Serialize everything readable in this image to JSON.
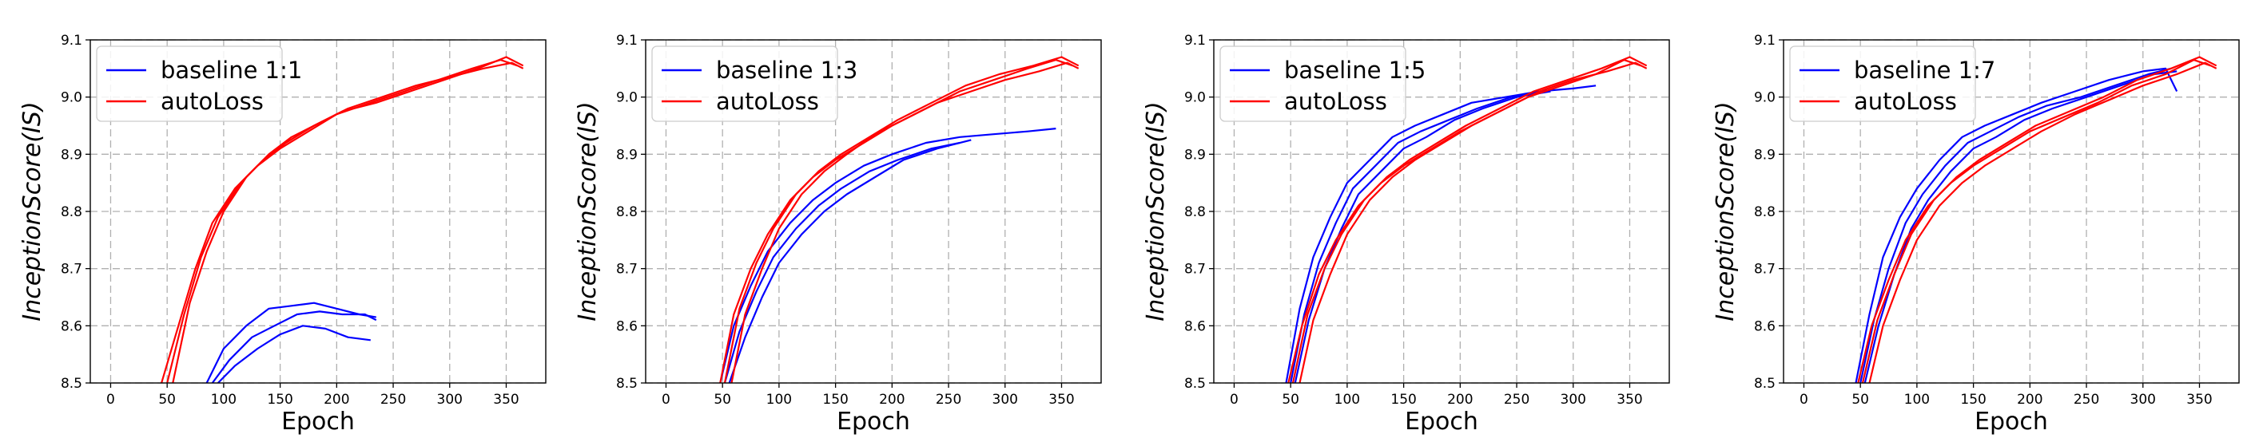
{
  "chart_data": [
    {
      "type": "line",
      "xlabel": "Epoch",
      "ylabel": "InceptionScore(IS)",
      "xlim": [
        -18,
        385
      ],
      "ylim": [
        8.5,
        9.1
      ],
      "xticks": [
        "0",
        "50",
        "100",
        "150",
        "200",
        "250",
        "300",
        "350"
      ],
      "yticks": [
        "8.5",
        "8.6",
        "8.7",
        "8.8",
        "8.9",
        "9.0",
        "9.1"
      ],
      "grid": true,
      "legend": "top-left",
      "series": [
        {
          "name": "baseline 1:1",
          "color": "#0000ff",
          "x": [
            85,
            100,
            120,
            140,
            160,
            180,
            200,
            220,
            235
          ],
          "y": [
            8.5,
            8.56,
            8.6,
            8.63,
            8.635,
            8.64,
            8.63,
            8.62,
            8.615
          ]
        },
        {
          "name": "",
          "color": "#0000ff",
          "x": [
            90,
            105,
            125,
            145,
            165,
            185,
            205,
            225,
            235
          ],
          "y": [
            8.5,
            8.54,
            8.58,
            8.6,
            8.62,
            8.625,
            8.62,
            8.62,
            8.61
          ]
        },
        {
          "name": "",
          "color": "#0000ff",
          "x": [
            95,
            110,
            130,
            150,
            170,
            190,
            210,
            230
          ],
          "y": [
            8.5,
            8.53,
            8.56,
            8.585,
            8.6,
            8.595,
            8.58,
            8.575
          ]
        },
        {
          "name": "autoLoss",
          "color": "#ff0000",
          "x": [
            45,
            60,
            75,
            90,
            110,
            130,
            150,
            175,
            200,
            230,
            260,
            290,
            320,
            345,
            360
          ],
          "y": [
            8.5,
            8.6,
            8.7,
            8.78,
            8.84,
            8.88,
            8.91,
            8.94,
            8.97,
            8.99,
            9.01,
            9.03,
            9.05,
            9.065,
            9.055
          ]
        },
        {
          "name": "",
          "color": "#ff0000",
          "x": [
            50,
            65,
            80,
            95,
            115,
            135,
            155,
            180,
            205,
            235,
            265,
            295,
            325,
            350,
            365
          ],
          "y": [
            8.5,
            8.62,
            8.72,
            8.79,
            8.85,
            8.89,
            8.92,
            8.95,
            8.975,
            8.99,
            9.01,
            9.03,
            9.05,
            9.07,
            9.055
          ]
        },
        {
          "name": "",
          "color": "#ff0000",
          "x": [
            55,
            70,
            85,
            100,
            120,
            140,
            160,
            185,
            210,
            240,
            270,
            300,
            330,
            355,
            365
          ],
          "y": [
            8.5,
            8.64,
            8.73,
            8.8,
            8.86,
            8.9,
            8.93,
            8.955,
            8.98,
            9.0,
            9.02,
            9.035,
            9.05,
            9.06,
            9.05
          ]
        }
      ]
    },
    {
      "type": "line",
      "xlabel": "Epoch",
      "ylabel": "InceptionScore(IS)",
      "xlim": [
        -18,
        385
      ],
      "ylim": [
        8.5,
        9.1
      ],
      "xticks": [
        "0",
        "50",
        "100",
        "150",
        "200",
        "250",
        "300",
        "350"
      ],
      "yticks": [
        "8.5",
        "8.6",
        "8.7",
        "8.8",
        "8.9",
        "9.0",
        "9.1"
      ],
      "grid": true,
      "legend": "top-left",
      "series": [
        {
          "name": "baseline 1:3",
          "color": "#0000ff",
          "x": [
            48,
            60,
            75,
            90,
            110,
            130,
            150,
            175,
            200,
            230,
            260,
            290,
            320,
            345
          ],
          "y": [
            8.5,
            8.6,
            8.67,
            8.73,
            8.78,
            8.82,
            8.85,
            8.88,
            8.9,
            8.92,
            8.93,
            8.935,
            8.94,
            8.945
          ]
        },
        {
          "name": "",
          "color": "#0000ff",
          "x": [
            52,
            65,
            80,
            95,
            115,
            135,
            155,
            180,
            205,
            235,
            260
          ],
          "y": [
            8.5,
            8.59,
            8.66,
            8.72,
            8.77,
            8.81,
            8.84,
            8.87,
            8.89,
            8.91,
            8.92
          ]
        },
        {
          "name": "",
          "color": "#0000ff",
          "x": [
            56,
            70,
            85,
            100,
            120,
            140,
            160,
            185,
            210,
            240,
            270
          ],
          "y": [
            8.5,
            8.58,
            8.65,
            8.71,
            8.76,
            8.8,
            8.83,
            8.86,
            8.89,
            8.91,
            8.925
          ]
        },
        {
          "name": "autoLoss",
          "color": "#ff0000",
          "x": [
            48,
            60,
            75,
            90,
            110,
            130,
            150,
            175,
            200,
            230,
            260,
            290,
            320,
            345,
            360
          ],
          "y": [
            8.5,
            8.62,
            8.7,
            8.76,
            8.82,
            8.86,
            8.89,
            8.92,
            8.95,
            8.98,
            9.01,
            9.03,
            9.05,
            9.065,
            9.055
          ]
        },
        {
          "name": "",
          "color": "#ff0000",
          "x": [
            52,
            65,
            80,
            95,
            115,
            135,
            155,
            180,
            205,
            235,
            265,
            295,
            325,
            350,
            365
          ],
          "y": [
            8.5,
            8.63,
            8.71,
            8.77,
            8.83,
            8.87,
            8.9,
            8.93,
            8.96,
            8.99,
            9.02,
            9.04,
            9.055,
            9.07,
            9.055
          ]
        },
        {
          "name": "",
          "color": "#ff0000",
          "x": [
            58,
            70,
            85,
            100,
            120,
            140,
            160,
            185,
            210,
            240,
            270,
            300,
            330,
            355,
            365
          ],
          "y": [
            8.5,
            8.62,
            8.7,
            8.77,
            8.83,
            8.87,
            8.9,
            8.935,
            8.96,
            8.99,
            9.01,
            9.03,
            9.045,
            9.06,
            9.05
          ]
        }
      ]
    },
    {
      "type": "line",
      "xlabel": "Epoch",
      "ylabel": "InceptionScore(IS)",
      "xlim": [
        -18,
        385
      ],
      "ylim": [
        8.5,
        9.1
      ],
      "xticks": [
        "0",
        "50",
        "100",
        "150",
        "200",
        "250",
        "300",
        "350"
      ],
      "yticks": [
        "8.5",
        "8.6",
        "8.7",
        "8.8",
        "8.9",
        "9.0",
        "9.1"
      ],
      "grid": true,
      "legend": "top-left",
      "series": [
        {
          "name": "baseline 1:5",
          "color": "#0000ff",
          "x": [
            46,
            58,
            70,
            85,
            100,
            120,
            140,
            160,
            185,
            210,
            240,
            270,
            300,
            320
          ],
          "y": [
            8.5,
            8.63,
            8.72,
            8.79,
            8.85,
            8.89,
            8.93,
            8.95,
            8.97,
            8.99,
            9.0,
            9.01,
            9.015,
            9.02
          ]
        },
        {
          "name": "",
          "color": "#0000ff",
          "x": [
            50,
            62,
            75,
            90,
            105,
            125,
            145,
            165,
            190,
            215,
            245,
            275
          ],
          "y": [
            8.5,
            8.62,
            8.71,
            8.78,
            8.84,
            8.88,
            8.92,
            8.94,
            8.96,
            8.98,
            9.0,
            9.01
          ]
        },
        {
          "name": "",
          "color": "#0000ff",
          "x": [
            54,
            66,
            80,
            95,
            110,
            130,
            150,
            170,
            195,
            220,
            250,
            280
          ],
          "y": [
            8.5,
            8.61,
            8.7,
            8.77,
            8.83,
            8.87,
            8.91,
            8.93,
            8.96,
            8.98,
            9.0,
            9.01
          ]
        },
        {
          "name": "autoLoss",
          "color": "#ff0000",
          "x": [
            48,
            60,
            75,
            90,
            110,
            130,
            150,
            175,
            200,
            230,
            260,
            290,
            320,
            345,
            360
          ],
          "y": [
            8.5,
            8.6,
            8.69,
            8.75,
            8.81,
            8.85,
            8.88,
            8.91,
            8.94,
            8.97,
            9.0,
            9.02,
            9.04,
            9.065,
            9.055
          ]
        },
        {
          "name": "",
          "color": "#ff0000",
          "x": [
            52,
            65,
            80,
            95,
            115,
            135,
            155,
            180,
            205,
            235,
            265,
            295,
            325,
            350,
            365
          ],
          "y": [
            8.5,
            8.62,
            8.7,
            8.76,
            8.82,
            8.86,
            8.89,
            8.92,
            8.95,
            8.98,
            9.01,
            9.03,
            9.05,
            9.07,
            9.055
          ]
        },
        {
          "name": "",
          "color": "#ff0000",
          "x": [
            58,
            70,
            85,
            100,
            120,
            140,
            160,
            185,
            210,
            240,
            270,
            300,
            330,
            355,
            365
          ],
          "y": [
            8.5,
            8.61,
            8.69,
            8.76,
            8.82,
            8.86,
            8.89,
            8.92,
            8.95,
            8.98,
            9.01,
            9.03,
            9.045,
            9.06,
            9.05
          ]
        }
      ]
    },
    {
      "type": "line",
      "xlabel": "Epoch",
      "ylabel": "InceptionScore(IS)",
      "xlim": [
        -18,
        385
      ],
      "ylim": [
        8.5,
        9.1
      ],
      "xticks": [
        "0",
        "50",
        "100",
        "150",
        "200",
        "250",
        "300",
        "350"
      ],
      "yticks": [
        "8.5",
        "8.6",
        "8.7",
        "8.8",
        "8.9",
        "9.0",
        "9.1"
      ],
      "grid": true,
      "legend": "top-left",
      "series": [
        {
          "name": "baseline 1:7",
          "color": "#0000ff",
          "x": [
            46,
            58,
            70,
            85,
            100,
            120,
            140,
            160,
            185,
            210,
            240,
            270,
            300,
            320,
            330
          ],
          "y": [
            8.5,
            8.62,
            8.72,
            8.79,
            8.84,
            8.89,
            8.93,
            8.95,
            8.97,
            8.99,
            9.01,
            9.03,
            9.045,
            9.05,
            9.01
          ]
        },
        {
          "name": "",
          "color": "#0000ff",
          "x": [
            50,
            62,
            75,
            90,
            105,
            125,
            145,
            165,
            190,
            215,
            245,
            275,
            305,
            325
          ],
          "y": [
            8.5,
            8.61,
            8.7,
            8.78,
            8.83,
            8.88,
            8.92,
            8.94,
            8.965,
            8.985,
            9.0,
            9.02,
            9.04,
            9.05
          ]
        },
        {
          "name": "",
          "color": "#0000ff",
          "x": [
            54,
            66,
            80,
            95,
            110,
            130,
            150,
            170,
            195,
            220,
            250,
            280,
            310,
            330
          ],
          "y": [
            8.5,
            8.6,
            8.69,
            8.77,
            8.82,
            8.87,
            8.91,
            8.93,
            8.96,
            8.98,
            9.0,
            9.02,
            9.04,
            9.045
          ]
        },
        {
          "name": "autoLoss",
          "color": "#ff0000",
          "x": [
            48,
            60,
            75,
            90,
            110,
            130,
            150,
            175,
            200,
            230,
            260,
            290,
            320,
            345,
            360
          ],
          "y": [
            8.5,
            8.6,
            8.68,
            8.75,
            8.81,
            8.85,
            8.88,
            8.91,
            8.94,
            8.965,
            8.99,
            9.02,
            9.04,
            9.065,
            9.055
          ]
        },
        {
          "name": "",
          "color": "#ff0000",
          "x": [
            52,
            65,
            80,
            95,
            115,
            135,
            155,
            180,
            205,
            235,
            265,
            295,
            325,
            350,
            365
          ],
          "y": [
            8.5,
            8.61,
            8.69,
            8.76,
            8.82,
            8.86,
            8.89,
            8.92,
            8.95,
            8.975,
            9.0,
            9.03,
            9.05,
            9.07,
            9.055
          ]
        },
        {
          "name": "",
          "color": "#ff0000",
          "x": [
            58,
            70,
            85,
            100,
            120,
            140,
            160,
            185,
            210,
            240,
            270,
            300,
            330,
            355,
            365
          ],
          "y": [
            8.5,
            8.6,
            8.68,
            8.75,
            8.81,
            8.85,
            8.88,
            8.91,
            8.94,
            8.97,
            8.995,
            9.02,
            9.04,
            9.06,
            9.05
          ]
        }
      ]
    }
  ]
}
